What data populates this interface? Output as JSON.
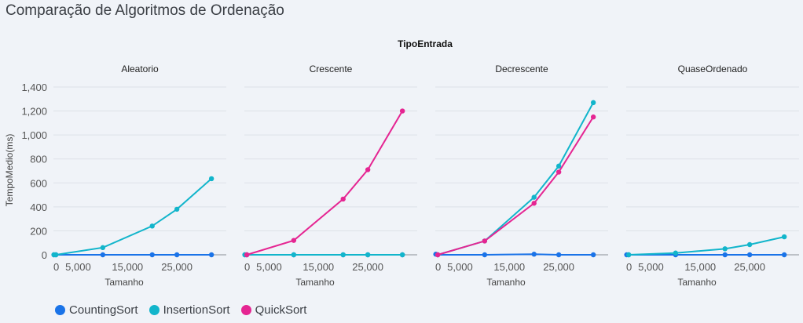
{
  "title": "Comparação de Algoritmos de Ordenação",
  "chart_data": {
    "type": "line",
    "facet_header": "TipoEntrada",
    "xlabel": "Tamanho",
    "ylabel": "TempoMedio(ms)",
    "ylim": [
      0,
      1400
    ],
    "y_ticks": [
      0,
      200,
      400,
      600,
      800,
      1000,
      1200,
      1400
    ],
    "y_tick_labels": [
      "0",
      "200",
      "400",
      "600",
      "800",
      "1,000",
      "1,200",
      "1,400"
    ],
    "x_ticks": [
      0,
      5000,
      15000,
      25000
    ],
    "x_tick_labels": [
      "0",
      "5,000",
      "15,000",
      "25,000"
    ],
    "xlim": [
      0,
      35000
    ],
    "grid": true,
    "legend_position": "bottom-left",
    "colors": {
      "CountingSort": "#1a73e8",
      "InsertionSort": "#12b5cb",
      "QuickSort": "#e52592"
    },
    "legend": [
      "CountingSort",
      "InsertionSort",
      "QuickSort"
    ],
    "facets": [
      {
        "name": "Aleatorio",
        "series": [
          {
            "name": "CountingSort",
            "x": [
              100,
              500,
              10000,
              20000,
              25000,
              32000
            ],
            "y": [
              0,
              0,
              0,
              0,
              0,
              0
            ]
          },
          {
            "name": "InsertionSort",
            "x": [
              100,
              500,
              10000,
              20000,
              25000,
              32000
            ],
            "y": [
              0,
              0,
              60,
              240,
              380,
              635
            ]
          }
        ]
      },
      {
        "name": "Crescente",
        "series": [
          {
            "name": "CountingSort",
            "x": [
              100,
              500,
              10000,
              20000,
              25000,
              32000
            ],
            "y": [
              0,
              0,
              0,
              0,
              0,
              0
            ]
          },
          {
            "name": "InsertionSort",
            "x": [
              100,
              500,
              10000,
              20000,
              25000,
              32000
            ],
            "y": [
              0,
              0,
              0,
              0,
              0,
              0
            ]
          },
          {
            "name": "QuickSort",
            "x": [
              500,
              10000,
              20000,
              25000,
              32000
            ],
            "y": [
              0,
              120,
              465,
              710,
              1200
            ]
          }
        ]
      },
      {
        "name": "Decrescente",
        "series": [
          {
            "name": "CountingSort",
            "x": [
              100,
              500,
              10000,
              20000,
              25000,
              32000
            ],
            "y": [
              5,
              0,
              0,
              5,
              0,
              0
            ]
          },
          {
            "name": "InsertionSort",
            "x": [
              500,
              10000,
              20000,
              25000,
              32000
            ],
            "y": [
              0,
              115,
              480,
              740,
              1270
            ]
          },
          {
            "name": "QuickSort",
            "x": [
              500,
              10000,
              20000,
              25000,
              32000
            ],
            "y": [
              0,
              115,
              430,
              690,
              1150
            ]
          }
        ]
      },
      {
        "name": "QuaseOrdenado",
        "series": [
          {
            "name": "CountingSort",
            "x": [
              100,
              500,
              10000,
              20000,
              25000,
              32000
            ],
            "y": [
              0,
              0,
              0,
              0,
              0,
              0
            ]
          },
          {
            "name": "InsertionSort",
            "x": [
              500,
              10000,
              20000,
              25000,
              32000
            ],
            "y": [
              0,
              15,
              50,
              85,
              150
            ]
          }
        ]
      }
    ]
  }
}
